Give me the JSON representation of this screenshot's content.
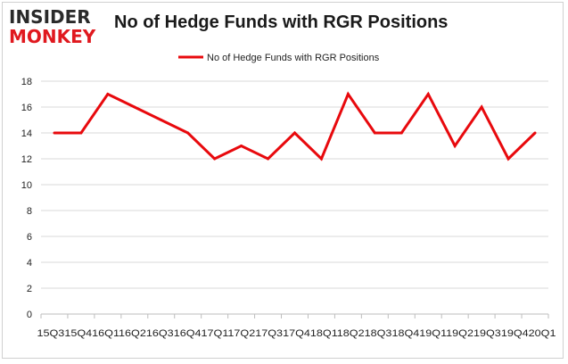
{
  "logo": {
    "line1": "INSIDER",
    "line2": "MONKEY"
  },
  "chart_data": {
    "type": "line",
    "title": "No of Hedge Funds with RGR Positions",
    "xlabel": "",
    "ylabel": "",
    "ylim": [
      0,
      18
    ],
    "yticks": [
      0,
      2,
      4,
      6,
      8,
      10,
      12,
      14,
      16,
      18
    ],
    "grid": true,
    "legend_position": "top",
    "categories": [
      "15Q3",
      "15Q4",
      "16Q1",
      "16Q2",
      "16Q3",
      "16Q4",
      "17Q1",
      "17Q2",
      "17Q3",
      "17Q4",
      "18Q1",
      "18Q2",
      "18Q3",
      "18Q4",
      "19Q1",
      "19Q2",
      "19Q3",
      "19Q4",
      "20Q1"
    ],
    "series": [
      {
        "name": "No of Hedge Funds with RGR Positions",
        "color": "#e8090d",
        "values": [
          14,
          14,
          17,
          16,
          15,
          14,
          12,
          13,
          12,
          14,
          12,
          17,
          14,
          14,
          17,
          13,
          16,
          12,
          14
        ]
      }
    ]
  }
}
